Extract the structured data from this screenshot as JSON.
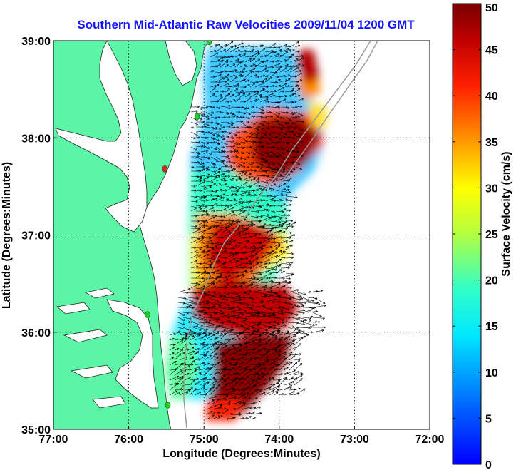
{
  "title": "Southern Mid-Atlantic Raw Velocities 2009/11/04 1200 GMT",
  "map": {
    "xlabel": "Longitude (Degrees:Minutes)",
    "ylabel": "Latitude (Degrees:Minutes)",
    "xlim": [
      -77,
      -72
    ],
    "ylim": [
      35,
      39
    ],
    "x_ticks": [
      {
        "value": -77,
        "label": "77:00"
      },
      {
        "value": -76,
        "label": "76:00"
      },
      {
        "value": -75,
        "label": "75:00"
      },
      {
        "value": -74,
        "label": "74:00"
      },
      {
        "value": -73,
        "label": "73:00"
      },
      {
        "value": -72,
        "label": "72:00"
      }
    ],
    "y_ticks": [
      {
        "value": 39,
        "label": "39:00"
      },
      {
        "value": 38,
        "label": "38:00"
      },
      {
        "value": 37,
        "label": "37:00"
      },
      {
        "value": 36,
        "label": "36:00"
      },
      {
        "value": 35,
        "label": "35:00"
      }
    ],
    "grid": true,
    "land_color": "#5cf5a8",
    "ocean_color": "#ffffff"
  },
  "colorbar": {
    "label": "Surface Velocity (cm/s)",
    "range": [
      0,
      50
    ],
    "ticks": [
      "0",
      "5",
      "10",
      "15",
      "20",
      "25",
      "30",
      "35",
      "40",
      "45",
      "50"
    ],
    "colormap": "jet"
  },
  "stations": [
    {
      "lon": -74.93,
      "lat": 38.99,
      "color": "#22cc22"
    },
    {
      "lon": -75.09,
      "lat": 38.22,
      "color": "#22cc22"
    },
    {
      "lon": -75.52,
      "lat": 37.68,
      "color": "#e02020"
    },
    {
      "lon": -75.75,
      "lat": 36.18,
      "color": "#22cc22"
    },
    {
      "lon": -75.48,
      "lat": 35.25,
      "color": "#22cc22"
    }
  ]
}
